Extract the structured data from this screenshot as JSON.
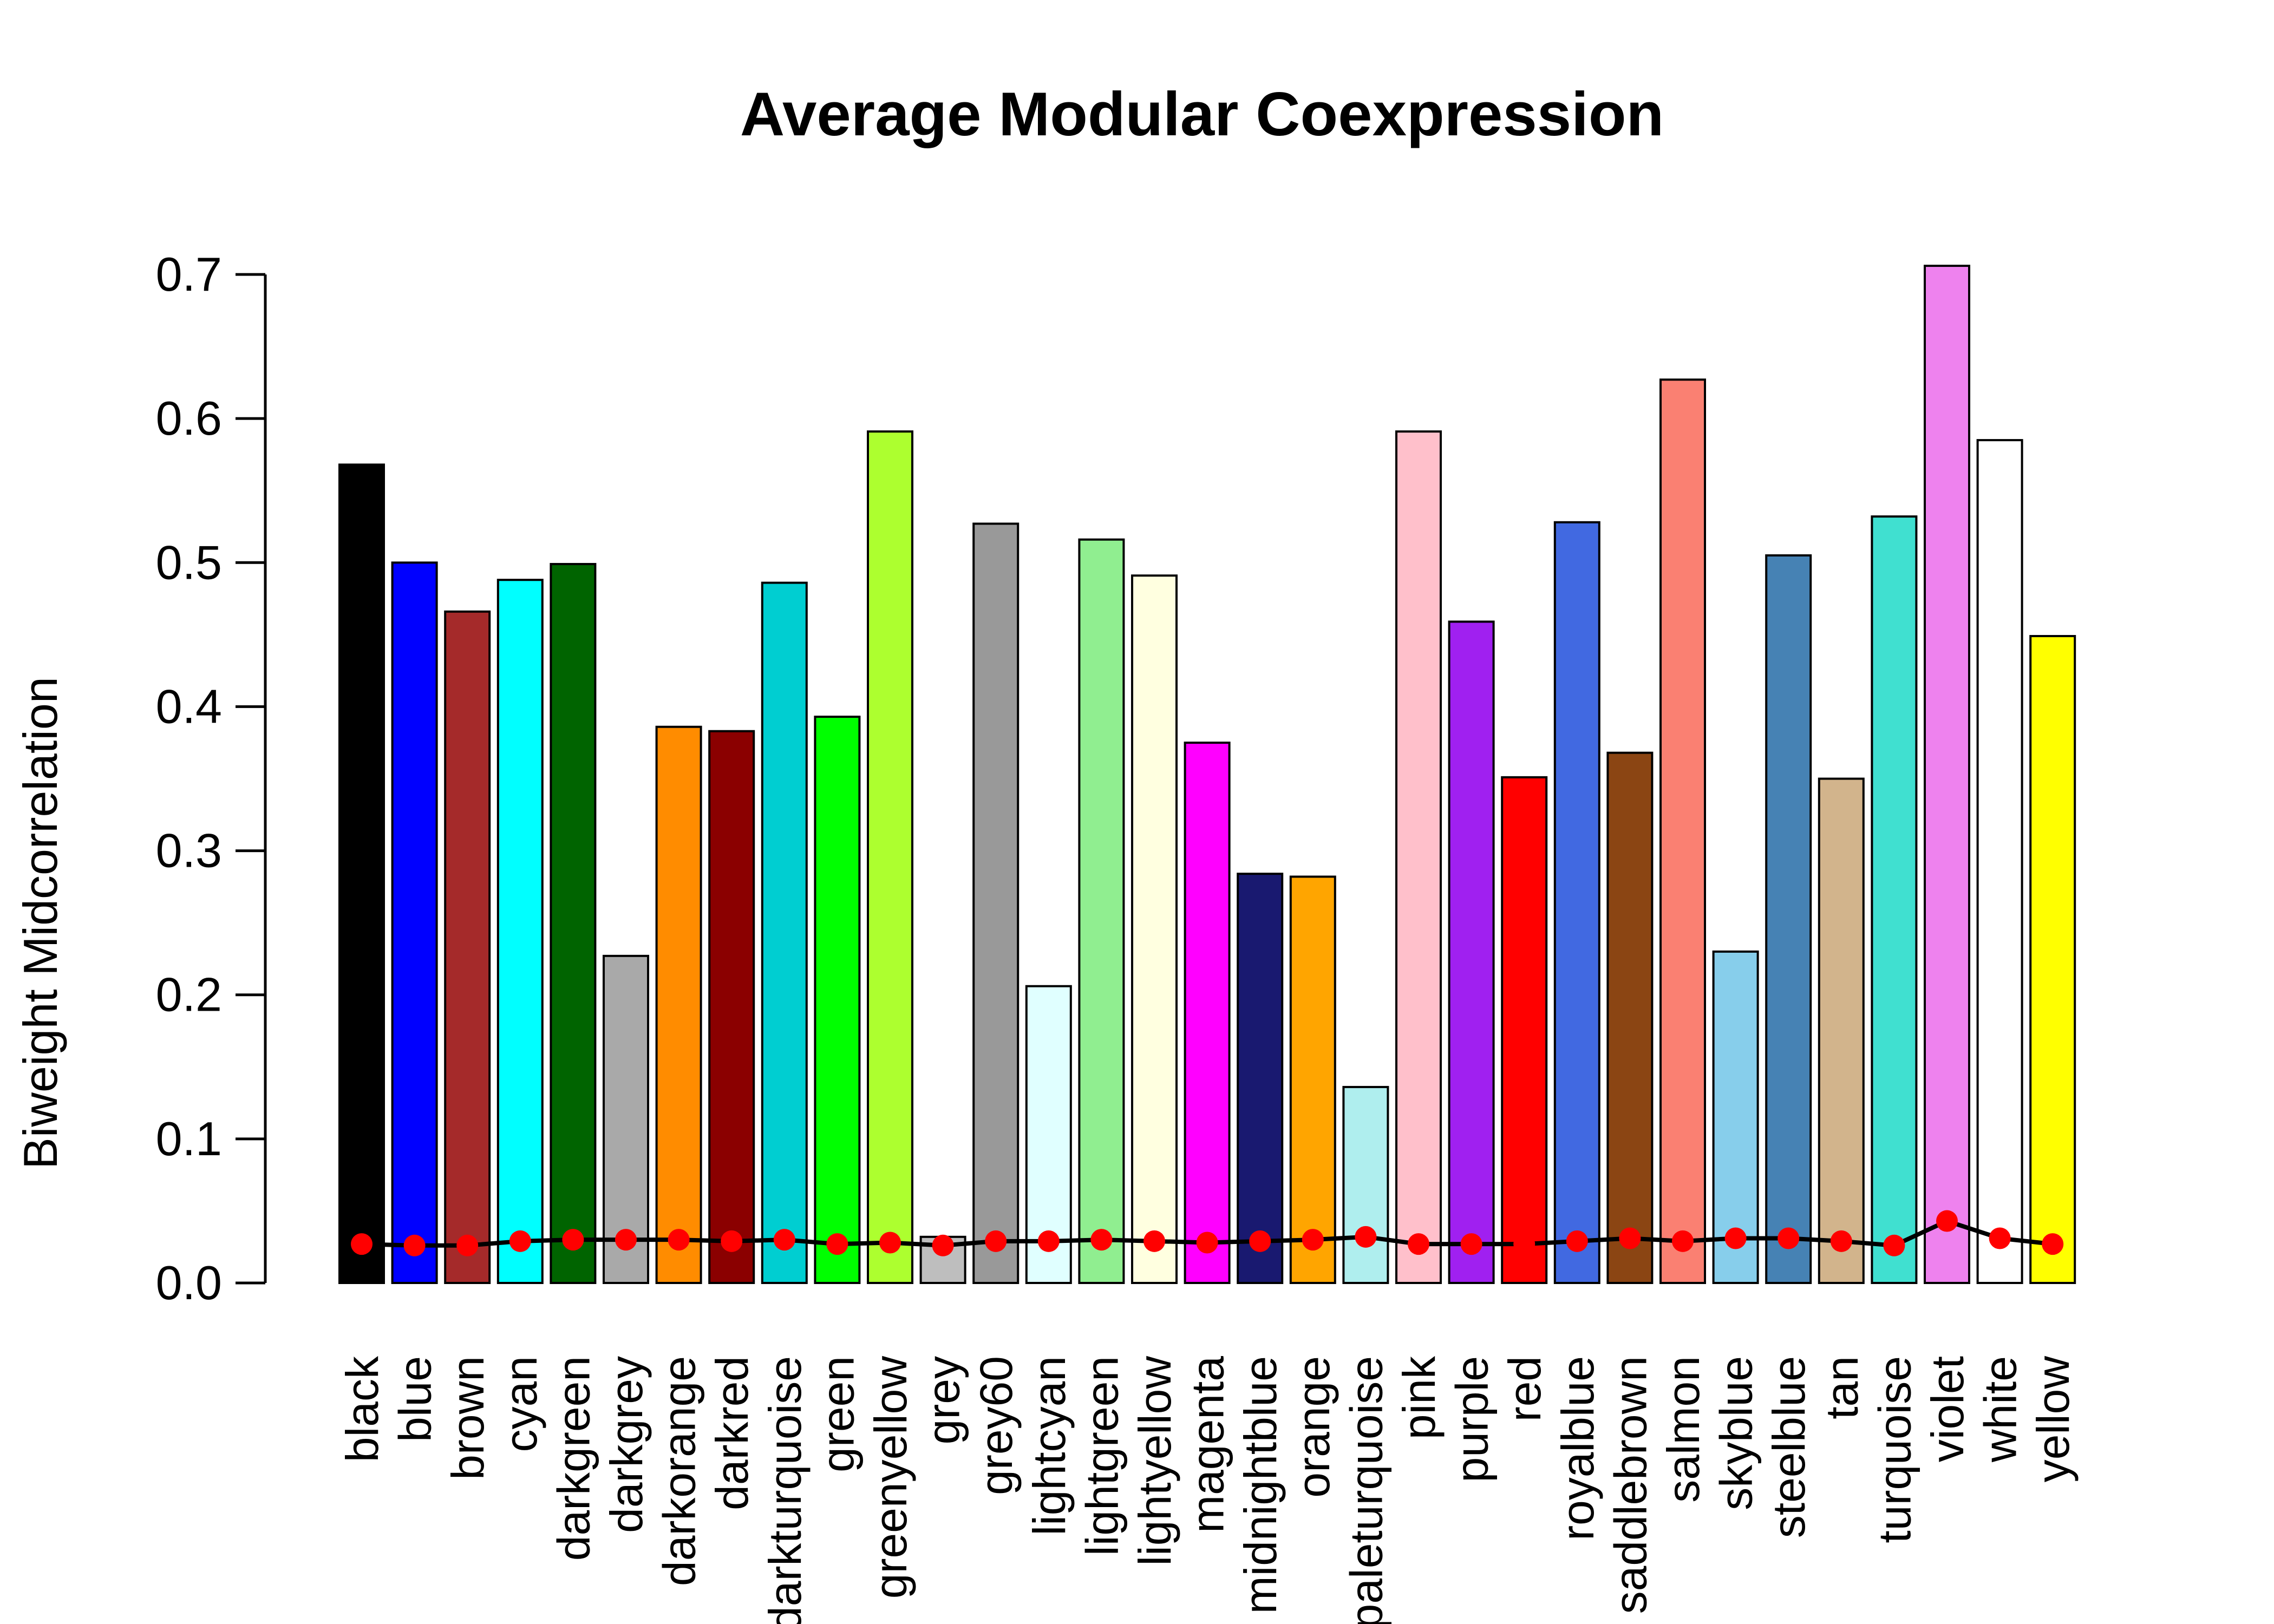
{
  "chart_data": {
    "type": "bar",
    "title": "Average Modular Coexpression",
    "xlabel": "",
    "ylabel": "Biweight Midcorrelation",
    "ylim": [
      0,
      0.7
    ],
    "yticks": [
      "0.0",
      "0.1",
      "0.2",
      "0.3",
      "0.4",
      "0.5",
      "0.6",
      "0.7"
    ],
    "grid": false,
    "categories": [
      "black",
      "blue",
      "brown",
      "cyan",
      "darkgreen",
      "darkgrey",
      "darkorange",
      "darkred",
      "darkturquoise",
      "green",
      "greenyellow",
      "grey",
      "grey60",
      "lightcyan",
      "lightgreen",
      "lightyellow",
      "magenta",
      "midnightblue",
      "orange",
      "paleturquoise",
      "pink",
      "purple",
      "red",
      "royalblue",
      "saddlebrown",
      "salmon",
      "skyblue",
      "steelblue",
      "tan",
      "turquoise",
      "violet",
      "white",
      "yellow"
    ],
    "bar_colors": [
      "#000000",
      "#0000FF",
      "#A52A2A",
      "#00FFFF",
      "#006400",
      "#A9A9A9",
      "#FF8C00",
      "#8B0000",
      "#00CED1",
      "#00FF00",
      "#ADFF2F",
      "#BEBEBE",
      "#999999",
      "#E0FFFF",
      "#90EE90",
      "#FFFFE0",
      "#FF00FF",
      "#191970",
      "#FFA500",
      "#AFEEEE",
      "#FFC0CB",
      "#A020F0",
      "#FF0000",
      "#4169E1",
      "#8B4513",
      "#FA8072",
      "#87CEEB",
      "#4682B4",
      "#D2B48C",
      "#40E0D0",
      "#EE82EE",
      "#FFFFFF",
      "#FFFF00"
    ],
    "series": [
      {
        "type": "bar",
        "values": [
          0.568,
          0.5,
          0.466,
          0.488,
          0.499,
          0.227,
          0.386,
          0.383,
          0.486,
          0.393,
          0.591,
          0.032,
          0.527,
          0.206,
          0.516,
          0.491,
          0.375,
          0.284,
          0.282,
          0.136,
          0.591,
          0.459,
          0.351,
          0.528,
          0.368,
          0.627,
          0.23,
          0.505,
          0.35,
          0.532,
          0.706,
          0.585,
          0.449
        ]
      },
      {
        "type": "line",
        "color": "#FF0000",
        "line_color": "#000000",
        "values": [
          0.027,
          0.026,
          0.026,
          0.029,
          0.03,
          0.03,
          0.03,
          0.029,
          0.03,
          0.027,
          0.028,
          0.026,
          0.029,
          0.029,
          0.03,
          0.029,
          0.028,
          0.029,
          0.03,
          0.032,
          0.027,
          0.027,
          0.027,
          0.029,
          0.031,
          0.029,
          0.031,
          0.031,
          0.029,
          0.026,
          0.043,
          0.031,
          0.027
        ]
      }
    ]
  }
}
